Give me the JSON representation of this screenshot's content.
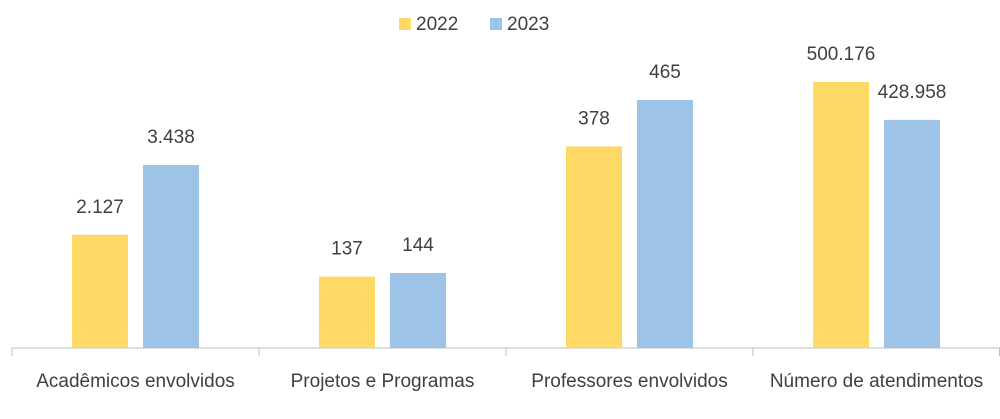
{
  "chart_data": {
    "type": "bar",
    "categories": [
      "Acadêmicos envolvidos",
      "Projetos e Programas",
      "Professores envolvidos",
      "Número de atendimentos"
    ],
    "series": [
      {
        "name": "2022",
        "color": "#FFD966",
        "values": [
          2127,
          137,
          378,
          500176
        ],
        "value_labels": [
          "2.127",
          "137",
          "378",
          "500.176"
        ]
      },
      {
        "name": "2023",
        "color": "#9DC3E6",
        "values": [
          3438,
          144,
          465,
          428958
        ],
        "value_labels": [
          "3.438",
          "144",
          "465",
          "428.958"
        ]
      }
    ],
    "legend": "top"
  }
}
